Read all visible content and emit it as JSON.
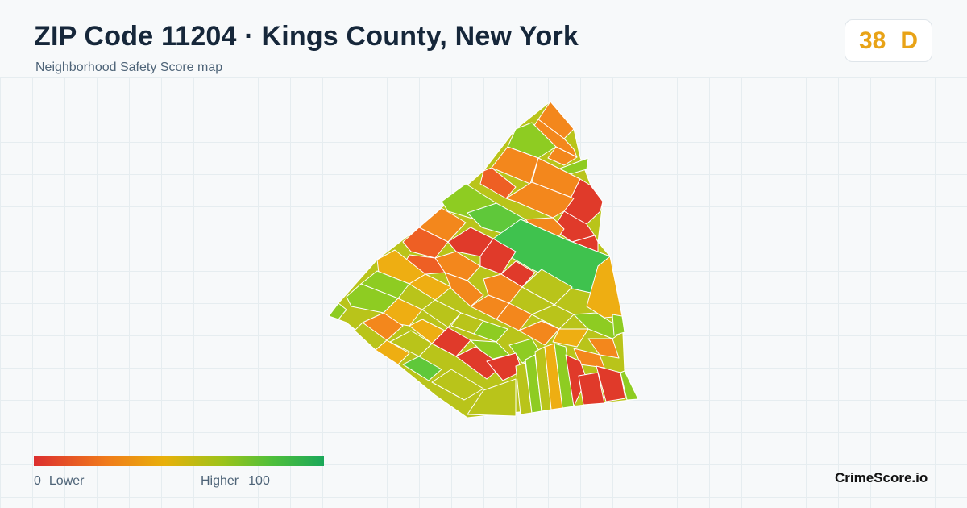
{
  "header": {
    "title": "ZIP Code 11204 · Kings County, New York",
    "subtitle": "Neighborhood Safety Score map"
  },
  "score_badge": {
    "score": "38",
    "grade": "D",
    "color": "#e8a317"
  },
  "legend": {
    "min_value": "0",
    "min_label": "Lower",
    "max_label": "Higher",
    "max_value": "100",
    "gradient_colors": [
      "#dc2f2f",
      "#f07b1b",
      "#e8b00a",
      "#9cc31a",
      "#4fbf3a",
      "#1ba85a"
    ]
  },
  "brand": "CrimeScore.io",
  "palette": {
    "red": "#e03a2a",
    "red_orange": "#ee5f24",
    "orange": "#f3871c",
    "amber": "#eeae12",
    "yellow_green": "#b9c41a",
    "lime": "#8ecc22",
    "green": "#5fc83a",
    "emerald": "#3fc24e"
  }
}
